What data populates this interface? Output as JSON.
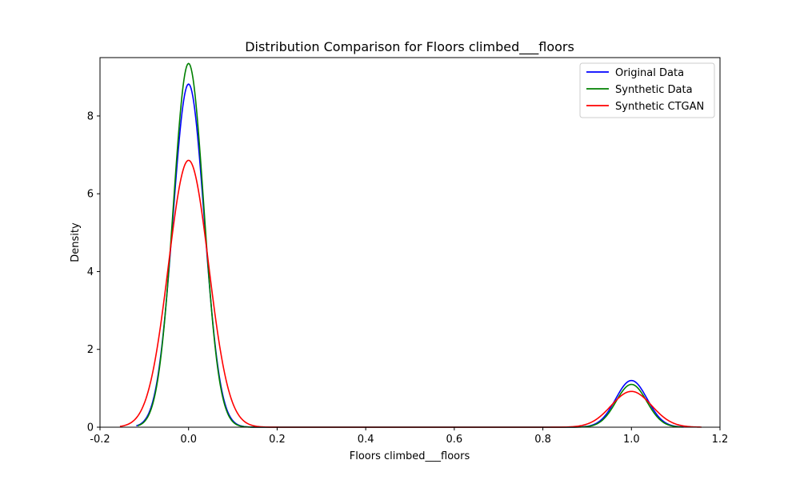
{
  "chart_data": {
    "type": "line",
    "title": "Distribution Comparison for Floors climbed___floors",
    "xlabel": "Floors climbed___floors",
    "ylabel": "Density",
    "xlim": [
      -0.2,
      1.2
    ],
    "ylim": [
      0,
      9.5
    ],
    "xticks": [
      -0.2,
      0.0,
      0.2,
      0.4,
      0.6,
      0.8,
      1.0,
      1.2
    ],
    "xtick_labels": [
      "-0.2",
      "0.0",
      "0.2",
      "0.4",
      "0.6",
      "0.8",
      "1.0",
      "1.2"
    ],
    "yticks": [
      0,
      2,
      4,
      6,
      8
    ],
    "ytick_labels": [
      "0",
      "2",
      "4",
      "6",
      "8"
    ],
    "grid": false,
    "legend_position": "top-right",
    "series": [
      {
        "name": "Original Data",
        "color": "#0000ff",
        "x_range": [
          -0.118,
          1.118
        ],
        "components": [
          {
            "mu": 0.0,
            "sigma": 0.0355,
            "peak": 8.82
          },
          {
            "mu": 1.0,
            "sigma": 0.0355,
            "peak": 1.2
          }
        ]
      },
      {
        "name": "Synthetic Data",
        "color": "#008000",
        "x_range": [
          -0.115,
          1.115
        ],
        "components": [
          {
            "mu": 0.0,
            "sigma": 0.0345,
            "peak": 9.35
          },
          {
            "mu": 1.0,
            "sigma": 0.0345,
            "peak": 1.1
          }
        ]
      },
      {
        "name": "Synthetic CTGAN",
        "color": "#ff0000",
        "x_range": [
          -0.155,
          1.158
        ],
        "components": [
          {
            "mu": 0.0,
            "sigma": 0.0455,
            "peak": 6.86
          },
          {
            "mu": 1.0,
            "sigma": 0.0455,
            "peak": 0.92
          }
        ]
      }
    ]
  }
}
